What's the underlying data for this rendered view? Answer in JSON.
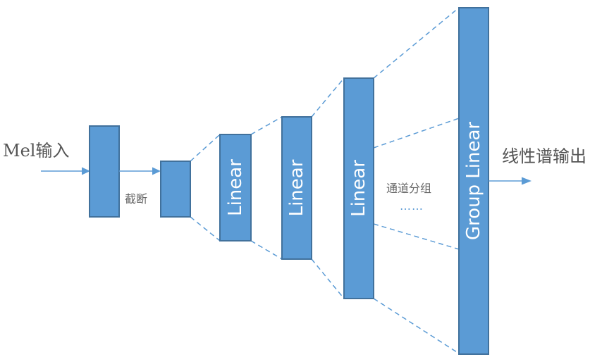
{
  "diagram": {
    "input_label": "Mel输入",
    "truncate_label": "截断",
    "layers": [
      "Linear",
      "Linear",
      "Linear"
    ],
    "group_layer": "Group Linear",
    "group_note": "通道分组",
    "ellipsis": "……",
    "output_label": "线性谱输出"
  },
  "colors": {
    "box_fill": "#5b9bd5",
    "box_border": "#41719c",
    "text": "#555555"
  }
}
